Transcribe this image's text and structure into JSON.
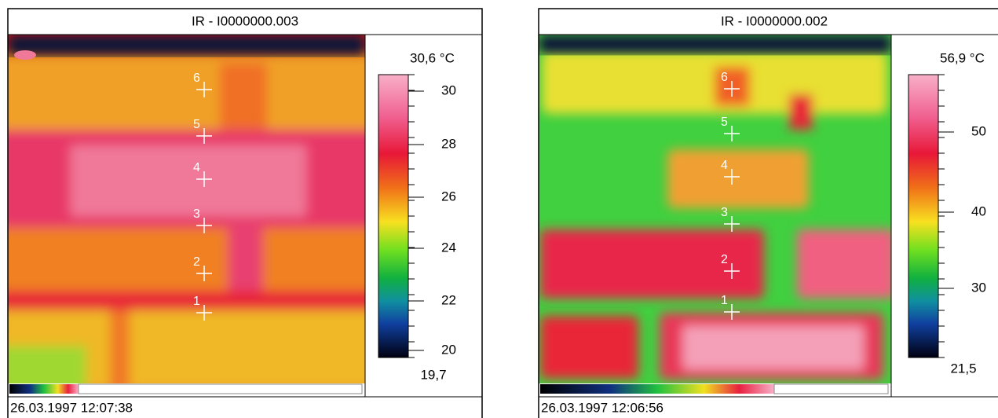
{
  "panels": [
    {
      "title": "IR - I0000000.003",
      "max_label": "30,6 °C",
      "min_label": "19,7",
      "scale_ticks": [
        "30",
        "28",
        "26",
        "24",
        "22",
        "20"
      ],
      "markers": [
        "1",
        "2",
        "3",
        "4",
        "5",
        "6"
      ],
      "timestamp": "26.03.1997 12:07:38"
    },
    {
      "title": "IR - I0000000.002",
      "max_label": "56,9 °C",
      "min_label": "21,5",
      "scale_ticks": [
        "50",
        "40",
        "30"
      ],
      "markers": [
        "1",
        "2",
        "3",
        "4",
        "5",
        "6"
      ],
      "timestamp": "26.03.1997 12:06:56"
    }
  ]
}
